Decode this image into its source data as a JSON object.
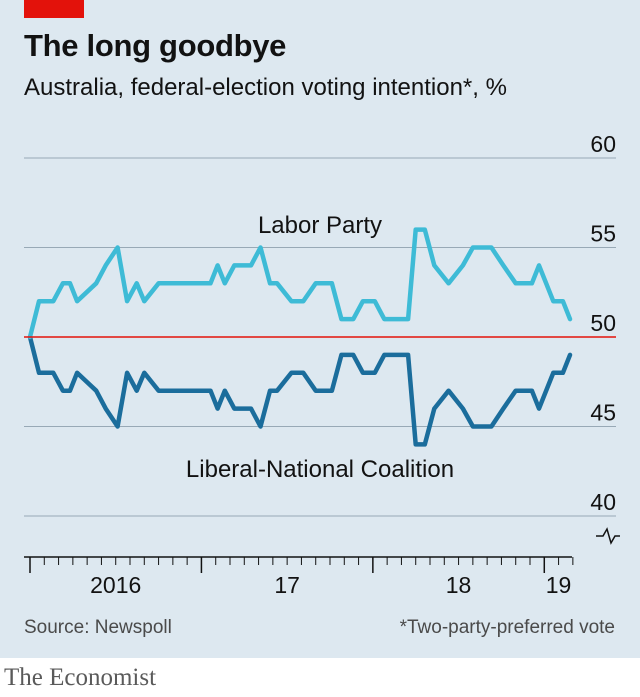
{
  "header": {
    "title": "The long goodbye",
    "subtitle": "Australia, federal-election voting intention*, %"
  },
  "footer": {
    "source": "Source: Newspoll",
    "footnote": "*Two-party-preferred vote",
    "brand": "The Economist"
  },
  "colors": {
    "brand_red": "#e3120b",
    "labor": "#3ebbd6",
    "coalition": "#1b6d9c",
    "baseline": "#e3120b",
    "grid": "#98a9b6",
    "background": "#dde8f0"
  },
  "chart_data": {
    "type": "line",
    "title": "The long goodbye",
    "subtitle": "Australia, federal-election voting intention*, %",
    "ylim": [
      40,
      60
    ],
    "y_ticks": [
      40,
      45,
      50,
      55,
      60
    ],
    "y_tick_labels": [
      "40",
      "45",
      "50",
      "55",
      "60"
    ],
    "y_axis_break": true,
    "grid": true,
    "reference_line": 50,
    "x_range": [
      "2016-01",
      "2019-03"
    ],
    "x_tick_labels": [
      {
        "label": "2016",
        "x": "2016-07"
      },
      {
        "label": "17",
        "x": "2017-07"
      },
      {
        "label": "18",
        "x": "2018-07"
      },
      {
        "label": "19",
        "x": "2019-02"
      }
    ],
    "series": [
      {
        "name": "Labor Party",
        "color": "#3ebbd6",
        "points": [
          [
            "2016-01-01",
            50
          ],
          [
            "2016-01-20",
            52
          ],
          [
            "2016-02-20",
            52
          ],
          [
            "2016-03-10",
            53
          ],
          [
            "2016-03-25",
            53
          ],
          [
            "2016-04-10",
            52
          ],
          [
            "2016-05-20",
            53
          ],
          [
            "2016-06-10",
            54
          ],
          [
            "2016-07-05",
            55
          ],
          [
            "2016-07-25",
            52
          ],
          [
            "2016-08-15",
            53
          ],
          [
            "2016-09-01",
            52
          ],
          [
            "2016-10-01",
            53
          ],
          [
            "2016-11-20",
            53
          ],
          [
            "2016-12-25",
            53
          ],
          [
            "2017-01-20",
            53
          ],
          [
            "2017-02-05",
            54
          ],
          [
            "2017-02-20",
            53
          ],
          [
            "2017-03-10",
            54
          ],
          [
            "2017-04-15",
            54
          ],
          [
            "2017-05-05",
            55
          ],
          [
            "2017-05-25",
            53
          ],
          [
            "2017-06-10",
            53
          ],
          [
            "2017-07-10",
            52
          ],
          [
            "2017-08-05",
            52
          ],
          [
            "2017-09-01",
            53
          ],
          [
            "2017-10-05",
            53
          ],
          [
            "2017-10-25",
            51
          ],
          [
            "2017-11-20",
            51
          ],
          [
            "2017-12-10",
            52
          ],
          [
            "2018-01-05",
            52
          ],
          [
            "2018-01-25",
            51
          ],
          [
            "2018-03-01",
            51
          ],
          [
            "2018-03-15",
            51
          ],
          [
            "2018-04-01",
            56
          ],
          [
            "2018-04-20",
            56
          ],
          [
            "2018-05-10",
            54
          ],
          [
            "2018-06-10",
            53
          ],
          [
            "2018-07-10",
            54
          ],
          [
            "2018-08-01",
            55
          ],
          [
            "2018-09-10",
            55
          ],
          [
            "2018-10-05",
            54
          ],
          [
            "2018-11-01",
            53
          ],
          [
            "2018-12-05",
            53
          ],
          [
            "2018-12-20",
            54
          ],
          [
            "2019-01-20",
            52
          ],
          [
            "2019-02-10",
            52
          ],
          [
            "2019-02-25",
            51
          ]
        ]
      },
      {
        "name": "Liberal-National Coalition",
        "color": "#1b6d9c",
        "points": [
          [
            "2016-01-01",
            50
          ],
          [
            "2016-01-20",
            48
          ],
          [
            "2016-02-20",
            48
          ],
          [
            "2016-03-10",
            47
          ],
          [
            "2016-03-25",
            47
          ],
          [
            "2016-04-10",
            48
          ],
          [
            "2016-05-20",
            47
          ],
          [
            "2016-06-10",
            46
          ],
          [
            "2016-07-05",
            45
          ],
          [
            "2016-07-25",
            48
          ],
          [
            "2016-08-15",
            47
          ],
          [
            "2016-09-01",
            48
          ],
          [
            "2016-10-01",
            47
          ],
          [
            "2016-11-20",
            47
          ],
          [
            "2016-12-25",
            47
          ],
          [
            "2017-01-20",
            47
          ],
          [
            "2017-02-05",
            46
          ],
          [
            "2017-02-20",
            47
          ],
          [
            "2017-03-10",
            46
          ],
          [
            "2017-04-15",
            46
          ],
          [
            "2017-05-05",
            45
          ],
          [
            "2017-05-25",
            47
          ],
          [
            "2017-06-10",
            47
          ],
          [
            "2017-07-10",
            48
          ],
          [
            "2017-08-05",
            48
          ],
          [
            "2017-09-01",
            47
          ],
          [
            "2017-10-05",
            47
          ],
          [
            "2017-10-25",
            49
          ],
          [
            "2017-11-20",
            49
          ],
          [
            "2017-12-10",
            48
          ],
          [
            "2018-01-05",
            48
          ],
          [
            "2018-01-25",
            49
          ],
          [
            "2018-03-01",
            49
          ],
          [
            "2018-03-15",
            49
          ],
          [
            "2018-04-01",
            44
          ],
          [
            "2018-04-20",
            44
          ],
          [
            "2018-05-10",
            46
          ],
          [
            "2018-06-10",
            47
          ],
          [
            "2018-07-10",
            46
          ],
          [
            "2018-08-01",
            45
          ],
          [
            "2018-09-10",
            45
          ],
          [
            "2018-10-05",
            46
          ],
          [
            "2018-11-01",
            47
          ],
          [
            "2018-12-05",
            47
          ],
          [
            "2018-12-20",
            46
          ],
          [
            "2019-01-20",
            48
          ],
          [
            "2019-02-10",
            48
          ],
          [
            "2019-02-25",
            49
          ]
        ]
      }
    ]
  }
}
